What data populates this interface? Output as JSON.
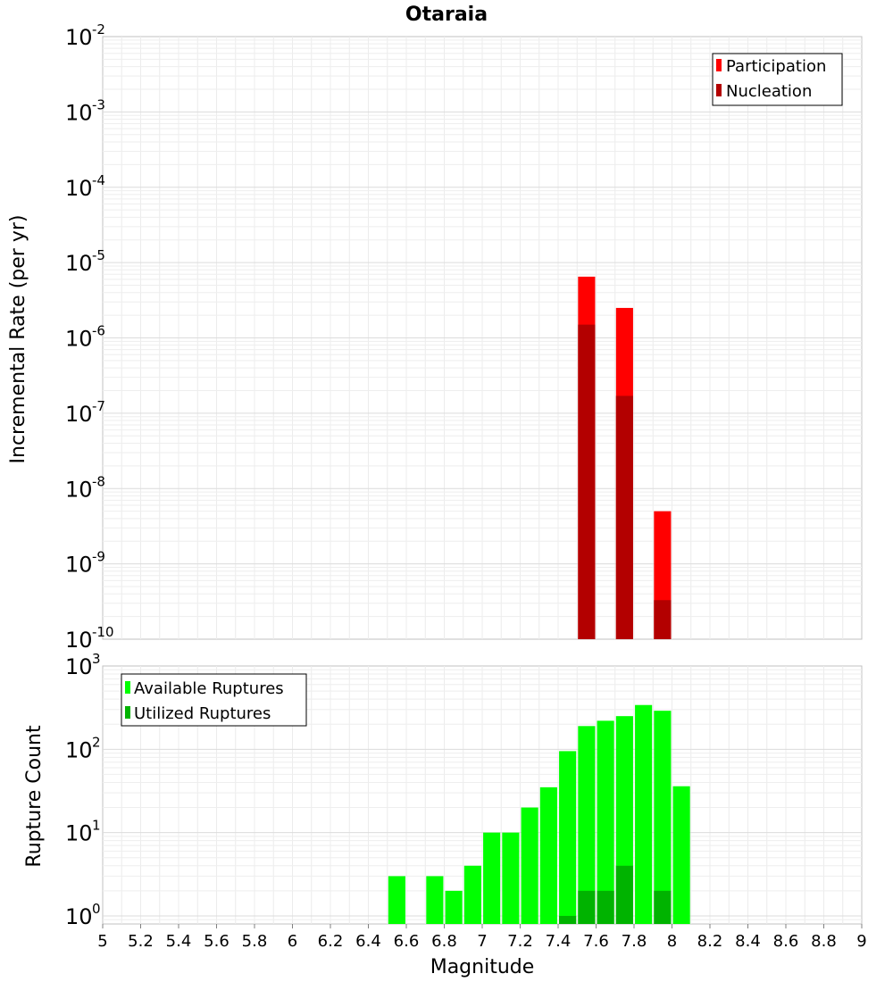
{
  "chart_data": [
    {
      "type": "bar",
      "title": "Otaraia",
      "ylabel": "Incremental Rate (per yr)",
      "xlabel": "",
      "yscale": "log",
      "ylim": [
        1e-10,
        0.01
      ],
      "xlim": [
        5,
        9
      ],
      "y_ticks": [
        {
          "base": "10",
          "exp": "-2"
        },
        {
          "base": "10",
          "exp": "-3"
        },
        {
          "base": "10",
          "exp": "-4"
        },
        {
          "base": "10",
          "exp": "-5"
        },
        {
          "base": "10",
          "exp": "-6"
        },
        {
          "base": "10",
          "exp": "-7"
        },
        {
          "base": "10",
          "exp": "-8"
        },
        {
          "base": "10",
          "exp": "-9"
        },
        {
          "base": "10",
          "exp": "-10"
        }
      ],
      "bar_width": 0.09,
      "grid": true,
      "legend_position": "top-right",
      "series": [
        {
          "name": "Participation",
          "color": "#ff0000",
          "x": [
            7.55,
            7.75,
            7.95
          ],
          "values": [
            6.5e-06,
            2.5e-06,
            5e-09
          ]
        },
        {
          "name": "Nucleation",
          "color": "#b30000",
          "x": [
            7.55,
            7.75,
            7.95
          ],
          "values": [
            1.5e-06,
            1.7e-07,
            3.3e-10
          ]
        }
      ]
    },
    {
      "type": "bar",
      "title": "",
      "ylabel": "Rupture Count",
      "xlabel": "Magnitude",
      "yscale": "log",
      "ylim": [
        0.8,
        1000
      ],
      "xlim": [
        5,
        9
      ],
      "x_ticks": [
        "5",
        "5.2",
        "5.4",
        "5.6",
        "5.8",
        "6",
        "6.2",
        "6.4",
        "6.6",
        "6.8",
        "7",
        "7.2",
        "7.4",
        "7.6",
        "7.8",
        "8",
        "8.2",
        "8.4",
        "8.6",
        "8.8",
        "9"
      ],
      "y_ticks": [
        {
          "base": "10",
          "exp": "3"
        },
        {
          "base": "10",
          "exp": "2"
        },
        {
          "base": "10",
          "exp": "1"
        },
        {
          "base": "10",
          "exp": "0"
        }
      ],
      "bar_width": 0.09,
      "grid": true,
      "legend_position": "top-left",
      "series": [
        {
          "name": "Available Ruptures",
          "color": "#00ff00",
          "x": [
            6.55,
            6.75,
            6.85,
            6.95,
            7.05,
            7.15,
            7.25,
            7.35,
            7.45,
            7.55,
            7.65,
            7.75,
            7.85,
            7.95,
            8.05
          ],
          "values": [
            3,
            3,
            2,
            4,
            10,
            10,
            20,
            35,
            95,
            190,
            220,
            250,
            340,
            290,
            36
          ]
        },
        {
          "name": "Utilized Ruptures",
          "color": "#00b300",
          "x": [
            7.45,
            7.55,
            7.65,
            7.75,
            7.95
          ],
          "values": [
            1,
            2,
            2,
            4,
            2
          ]
        }
      ]
    }
  ]
}
